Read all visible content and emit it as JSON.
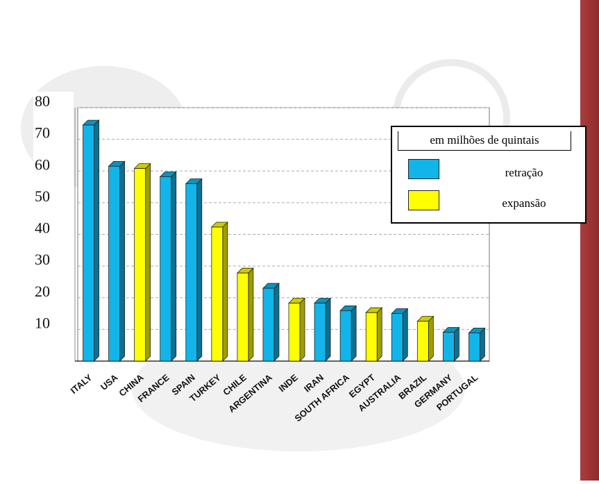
{
  "chart_data": {
    "type": "bar",
    "categories": [
      "ITALY",
      "USA",
      "CHINA",
      "FRANCE",
      "SPAIN",
      "TURKEY",
      "CHILE",
      "ARGENTINA",
      "INDE",
      "IRAN",
      "SOUTH AFRICA",
      "EGYPT",
      "AUSTRALIA",
      "BRAZIL",
      "GERMANY",
      "PORTUGAL"
    ],
    "values": [
      74.5,
      61.5,
      60.8,
      58.2,
      56.0,
      42.3,
      27.8,
      23.0,
      18.3,
      18.3,
      15.9,
      15.3,
      15.0,
      12.6,
      9.1,
      8.9
    ],
    "groups": [
      "retração",
      "retração",
      "expansão",
      "retração",
      "retração",
      "expansão",
      "expansão",
      "retração",
      "expansão",
      "retração",
      "retração",
      "expansão",
      "retração",
      "expansão",
      "retração",
      "retração"
    ],
    "ylim": [
      0,
      80
    ],
    "yticks": [
      "10",
      "20",
      "30",
      "40",
      "50",
      "60",
      "70",
      "80"
    ],
    "grid": true,
    "legend": {
      "title": "em milhões de quintais",
      "position": "top-right",
      "items": [
        {
          "label": "retração",
          "color": "#11b5ea"
        },
        {
          "label": "expansão",
          "color": "#ffff00"
        }
      ]
    },
    "colors": {
      "retração": "#11b5ea",
      "expansão": "#ffff00"
    }
  }
}
